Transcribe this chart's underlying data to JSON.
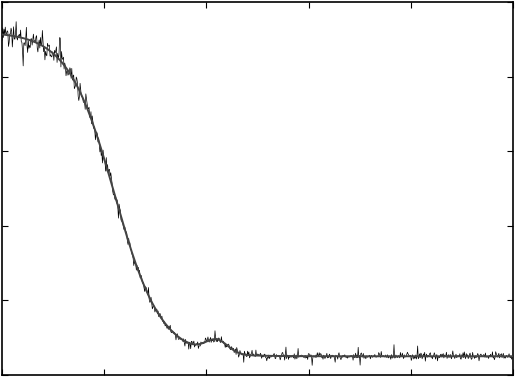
{
  "background_color": "#ffffff",
  "border_color": "#000000",
  "line_color_noisy": "#000000",
  "line_color_smooth": "#444444",
  "figsize": [
    5.15,
    3.77
  ],
  "dpi": 100,
  "seed": 12345
}
